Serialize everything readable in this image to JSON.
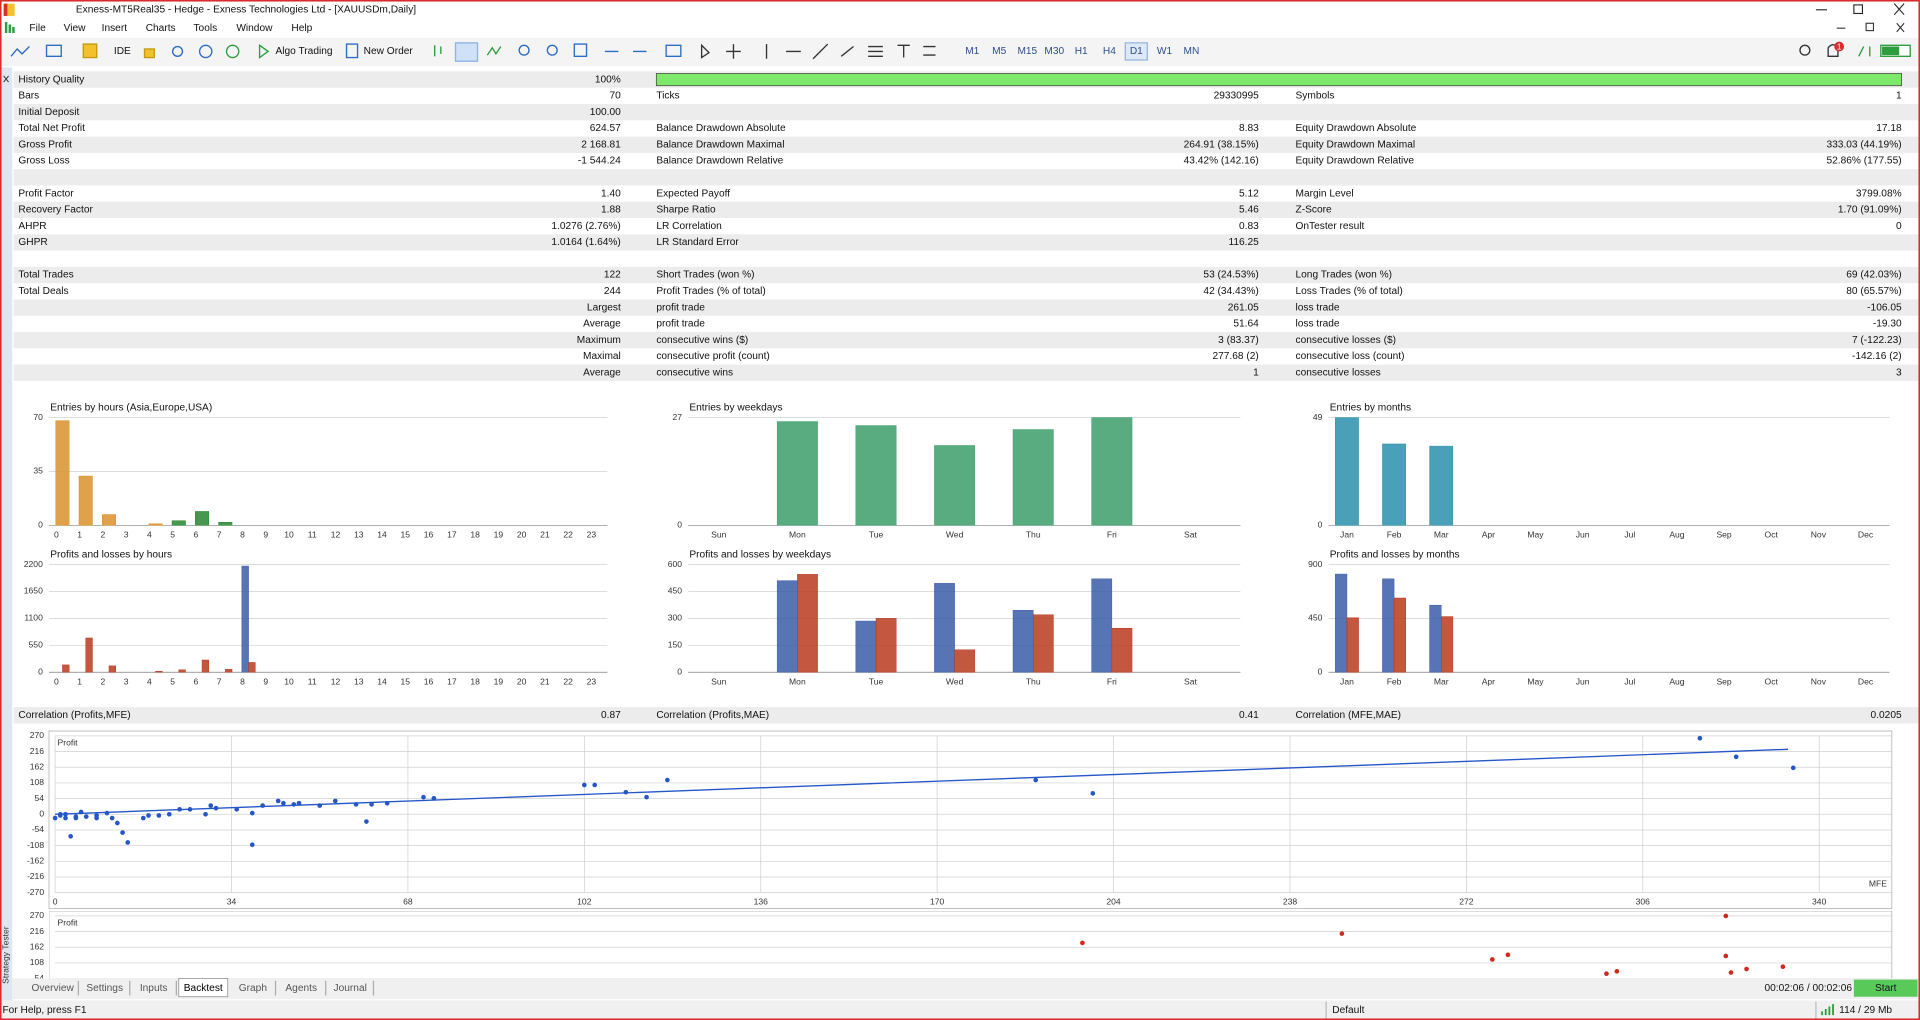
{
  "window": {
    "title": "Exness-MT5Real35 - Hedge - Exness Technologies Ltd - [XAUUSDm,Daily]"
  },
  "menu": [
    "File",
    "View",
    "Insert",
    "Charts",
    "Tools",
    "Window",
    "Help"
  ],
  "toolbar": {
    "ide": "IDE",
    "algo": "Algo Trading",
    "order": "New Order",
    "notifications": "1",
    "timeframes": [
      "M1",
      "M5",
      "M15",
      "M30",
      "H1",
      "H4",
      "D1",
      "W1",
      "MN"
    ]
  },
  "report": {
    "rows": [
      [
        "History Quality",
        "100%",
        null,
        null,
        null,
        null
      ],
      [
        "Bars",
        "70",
        "Ticks",
        "29330995",
        "Symbols",
        "1"
      ],
      [
        "Initial Deposit",
        "100.00",
        null,
        null,
        null,
        null
      ],
      [
        "Total Net Profit",
        "624.57",
        "Balance Drawdown Absolute",
        "8.83",
        "Equity Drawdown Absolute",
        "17.18"
      ],
      [
        "Gross Profit",
        "2 168.81",
        "Balance Drawdown Maximal",
        "264.91 (38.15%)",
        "Equity Drawdown Maximal",
        "333.03 (44.19%)"
      ],
      [
        "Gross Loss",
        "-1 544.24",
        "Balance Drawdown Relative",
        "43.42% (142.16)",
        "Equity Drawdown Relative",
        "52.86% (177.55)"
      ],
      [
        "Profit Factor",
        "1.40",
        "Expected Payoff",
        "5.12",
        "Margin Level",
        "3799.08%"
      ],
      [
        "Recovery Factor",
        "1.88",
        "Sharpe Ratio",
        "5.46",
        "Z-Score",
        "1.70 (91.09%)"
      ],
      [
        "AHPR",
        "1.0276 (2.76%)",
        "LR Correlation",
        "0.83",
        "OnTester result",
        "0"
      ],
      [
        "GHPR",
        "1.0164 (1.64%)",
        "LR Standard Error",
        "116.25",
        null,
        null
      ],
      [
        "Total Trades",
        "122",
        "Short Trades (won %)",
        "53 (24.53%)",
        "Long Trades (won %)",
        "69 (42.03%)"
      ],
      [
        "Total Deals",
        "244",
        "Profit Trades (% of total)",
        "42 (34.43%)",
        "Loss Trades (% of total)",
        "80 (65.57%)"
      ],
      [
        null,
        "Largest",
        "profit trade",
        "261.05",
        "loss trade",
        "-106.05"
      ],
      [
        null,
        "Average",
        "profit trade",
        "51.64",
        "loss trade",
        "-19.30"
      ],
      [
        null,
        "Maximum",
        "consecutive wins ($)",
        "3 (83.37)",
        "consecutive losses ($)",
        "7 (-122.23)"
      ],
      [
        null,
        "Maximal",
        "consecutive profit (count)",
        "277.68 (2)",
        "consecutive loss (count)",
        "-142.16 (2)"
      ],
      [
        null,
        "Average",
        "consecutive wins",
        "1",
        "consecutive losses",
        "3"
      ]
    ],
    "correlation": [
      "Correlation (Profits,MFE)",
      "0.87",
      "Correlation (Profits,MAE)",
      "0.41",
      "Correlation (MFE,MAE)",
      "0.0205"
    ]
  },
  "charts": [
    {
      "type": "bar",
      "title": "Entries by hours (Asia,Europe,USA)",
      "categories": [
        "0",
        "1",
        "2",
        "3",
        "4",
        "5",
        "6",
        "7",
        "8",
        "9",
        "10",
        "11",
        "12",
        "13",
        "14",
        "15",
        "16",
        "17",
        "18",
        "19",
        "20",
        "21",
        "22",
        "23"
      ],
      "ylim": [
        0,
        70
      ],
      "yticks": [
        0,
        35,
        70
      ],
      "series": [
        {
          "values": [
            68,
            32,
            7,
            0,
            1,
            3,
            9,
            2,
            0,
            0,
            0,
            0,
            0,
            0,
            0,
            0,
            0,
            0,
            0,
            0,
            0,
            0,
            0,
            0
          ],
          "colors": [
            "#d9902a",
            "#d9902a",
            "#d9902a",
            "#d9902a",
            "#d9902a",
            "#24862f",
            "#24862f",
            "#24862f",
            "#5b7fc7",
            "#5b7fc7",
            "#5b7fc7",
            "#5b7fc7",
            "#5b7fc7",
            "#5b7fc7",
            "#5b7fc7",
            "#5b7fc7",
            "#5b7fc7",
            "#5b7fc7",
            "#5b7fc7",
            "#5b7fc7",
            "#5b7fc7",
            "#5b7fc7",
            "#5b7fc7",
            "#5b7fc7"
          ]
        }
      ]
    },
    {
      "type": "bar",
      "title": "Entries by weekdays",
      "categories": [
        "Sun",
        "Mon",
        "Tue",
        "Wed",
        "Thu",
        "Fri",
        "Sat"
      ],
      "ylim": [
        0,
        27
      ],
      "yticks": [
        0,
        27
      ],
      "series": [
        {
          "color": "#3c9e6a",
          "values": [
            0,
            26,
            25,
            20,
            24,
            27,
            0
          ]
        }
      ]
    },
    {
      "type": "bar",
      "title": "Entries by months",
      "categories": [
        "Jan",
        "Feb",
        "Mar",
        "Apr",
        "May",
        "Jun",
        "Jul",
        "Aug",
        "Sep",
        "Oct",
        "Nov",
        "Dec"
      ],
      "ylim": [
        0,
        49
      ],
      "yticks": [
        0,
        49
      ],
      "series": [
        {
          "color": "#2a8fad",
          "values": [
            49,
            37,
            36,
            0,
            0,
            0,
            0,
            0,
            0,
            0,
            0,
            0
          ]
        }
      ]
    },
    {
      "type": "bar",
      "title": "Profits and losses by hours",
      "categories": [
        "0",
        "1",
        "2",
        "3",
        "4",
        "5",
        "6",
        "7",
        "8",
        "9",
        "10",
        "11",
        "12",
        "13",
        "14",
        "15",
        "16",
        "17",
        "18",
        "19",
        "20",
        "21",
        "22",
        "23"
      ],
      "ylim": [
        0,
        2200
      ],
      "yticks": [
        0,
        550,
        1100,
        1650,
        2200
      ],
      "series": [
        {
          "color": "#3a5ca8",
          "values": [
            0,
            0,
            0,
            0,
            0,
            0,
            0,
            0,
            2168,
            0,
            0,
            0,
            0,
            0,
            0,
            0,
            0,
            0,
            0,
            0,
            0,
            0,
            0,
            0
          ]
        },
        {
          "color": "#b83a1e",
          "values": [
            150,
            700,
            130,
            0,
            20,
            50,
            250,
            60,
            200,
            0,
            0,
            0,
            0,
            0,
            0,
            0,
            0,
            0,
            0,
            0,
            0,
            0,
            0,
            0
          ]
        }
      ]
    },
    {
      "type": "bar",
      "title": "Profits and losses by weekdays",
      "categories": [
        "Sun",
        "Mon",
        "Tue",
        "Wed",
        "Thu",
        "Fri",
        "Sat"
      ],
      "ylim": [
        0,
        600
      ],
      "yticks": [
        0,
        150,
        300,
        450,
        600
      ],
      "series": [
        {
          "color": "#3a5ca8",
          "values": [
            0,
            510,
            285,
            495,
            345,
            520,
            0
          ]
        },
        {
          "color": "#b83a1e",
          "values": [
            0,
            545,
            300,
            125,
            320,
            245,
            0
          ]
        }
      ]
    },
    {
      "type": "bar",
      "title": "Profits and losses by months",
      "categories": [
        "Jan",
        "Feb",
        "Mar",
        "Apr",
        "May",
        "Jun",
        "Jul",
        "Aug",
        "Sep",
        "Oct",
        "Nov",
        "Dec"
      ],
      "ylim": [
        0,
        900
      ],
      "yticks": [
        0,
        450,
        900
      ],
      "series": [
        {
          "color": "#3a5ca8",
          "values": [
            820,
            780,
            560,
            0,
            0,
            0,
            0,
            0,
            0,
            0,
            0,
            0
          ]
        },
        {
          "color": "#b83a1e",
          "values": [
            455,
            620,
            465,
            0,
            0,
            0,
            0,
            0,
            0,
            0,
            0,
            0
          ]
        }
      ]
    }
  ],
  "scatters": [
    {
      "type": "scatter",
      "ylabel": "Profit",
      "xlabel": "MFE",
      "color": "#2456c9",
      "xlim": [
        0,
        354
      ],
      "xticks": [
        0,
        34,
        68,
        102,
        136,
        170,
        204,
        238,
        272,
        306,
        340
      ],
      "ylim": [
        -270,
        270
      ],
      "yticks": [
        -270,
        -216,
        -162,
        -108,
        -54,
        0,
        54,
        108,
        162,
        216,
        270
      ],
      "x": [
        317,
        324,
        335,
        200,
        189,
        118,
        114,
        110,
        104,
        102,
        73,
        71,
        64,
        61,
        60,
        58,
        54,
        51,
        47,
        46,
        44,
        43,
        40,
        38,
        38,
        35,
        31,
        30,
        29,
        26,
        24,
        22,
        20,
        18,
        17,
        14,
        13,
        12,
        10,
        8,
        6,
        4,
        3,
        2,
        1,
        0,
        1,
        2,
        4,
        5,
        8,
        11
      ],
      "y": [
        262,
        198,
        160,
        72,
        118,
        118,
        59,
        76,
        101,
        101,
        55,
        59,
        38,
        34,
        -25,
        34,
        46,
        30,
        38,
        34,
        38,
        46,
        30,
        4,
        -105,
        17,
        21,
        30,
        0,
        17,
        17,
        0,
        -4,
        -4,
        -13,
        -97,
        -63,
        -30,
        4,
        -13,
        -8,
        -13,
        -76,
        -13,
        -4,
        -13,
        0,
        0,
        -8,
        8,
        -4,
        -13
      ],
      "trend": {
        "x": [
          0,
          334
        ],
        "y": [
          0,
          224
        ]
      }
    },
    {
      "type": "scatter",
      "ylabel": "Profit",
      "color": "#d0281a",
      "xlim": [
        0,
        354
      ],
      "ylim": [
        -270,
        270
      ],
      "yticks": [
        54,
        108,
        162,
        216,
        270
      ],
      "x": [
        198,
        248,
        277,
        280,
        322,
        322,
        333,
        301,
        299,
        323,
        326
      ],
      "y": [
        177,
        209,
        120,
        136,
        270,
        132,
        95,
        79,
        71,
        75,
        87
      ]
    }
  ],
  "tabs": [
    "Overview",
    "Settings",
    "Inputs",
    "Backtest",
    "Graph",
    "Agents",
    "Journal"
  ],
  "tester": {
    "side_label": "Strategy Tester",
    "timer": "00:02:06 / 00:02:06",
    "start": "Start"
  },
  "status": {
    "help": "For Help, press F1",
    "profile": "Default",
    "memory": "114 / 29 Mb"
  }
}
